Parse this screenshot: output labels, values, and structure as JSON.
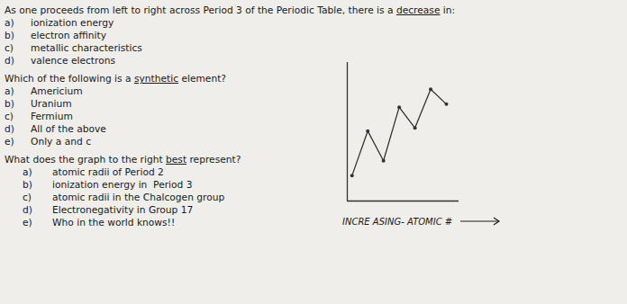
{
  "chart_data": {
    "type": "line",
    "x": [
      0,
      1,
      2,
      3,
      4,
      5,
      6
    ],
    "values": [
      0.12,
      0.42,
      0.22,
      0.58,
      0.44,
      0.7,
      0.6
    ],
    "color": "#333333",
    "marker": "circle",
    "xlim": [
      -0.3,
      6.8
    ],
    "ylim": [
      -0.05,
      0.88
    ],
    "xticks": [],
    "yticks": [],
    "tick_labels": false,
    "xlabel": "INCRE ASING- ATOMIC #",
    "annotations": [
      {
        "question": [
          "As one proceeds from left to right across Period 3 of the Periodic Table, there is a ",
          "decrease",
          " in:"
        ],
        "choices": [
          [
            "a)",
            "ionization energy"
          ],
          [
            "b)",
            "electron affinity"
          ],
          [
            "c)",
            "metallic characteristics"
          ],
          [
            "d)",
            "valence electrons"
          ]
        ]
      },
      {
        "question": [
          "Which of the following is a ",
          "synthetic",
          " element?"
        ],
        "choices": [
          [
            "a)",
            "Americium"
          ],
          [
            "b)",
            "Uranium"
          ],
          [
            "c)",
            "Fermium"
          ],
          [
            "d)",
            "All of the above"
          ],
          [
            "e)",
            "Only a and c"
          ]
        ]
      },
      {
        "question": [
          "What does the graph to the right ",
          "best",
          " represent?"
        ],
        "choices": [
          [
            "a)",
            "atomic radii of Period 2"
          ],
          [
            "b)",
            "ionization energy in  Period 3"
          ],
          [
            "c)",
            "atomic radii in the Chalcogen group"
          ],
          [
            "d)",
            "Electronegativity in Group 17"
          ],
          [
            "e)",
            "Who in the world knows!!"
          ]
        ]
      }
    ]
  }
}
